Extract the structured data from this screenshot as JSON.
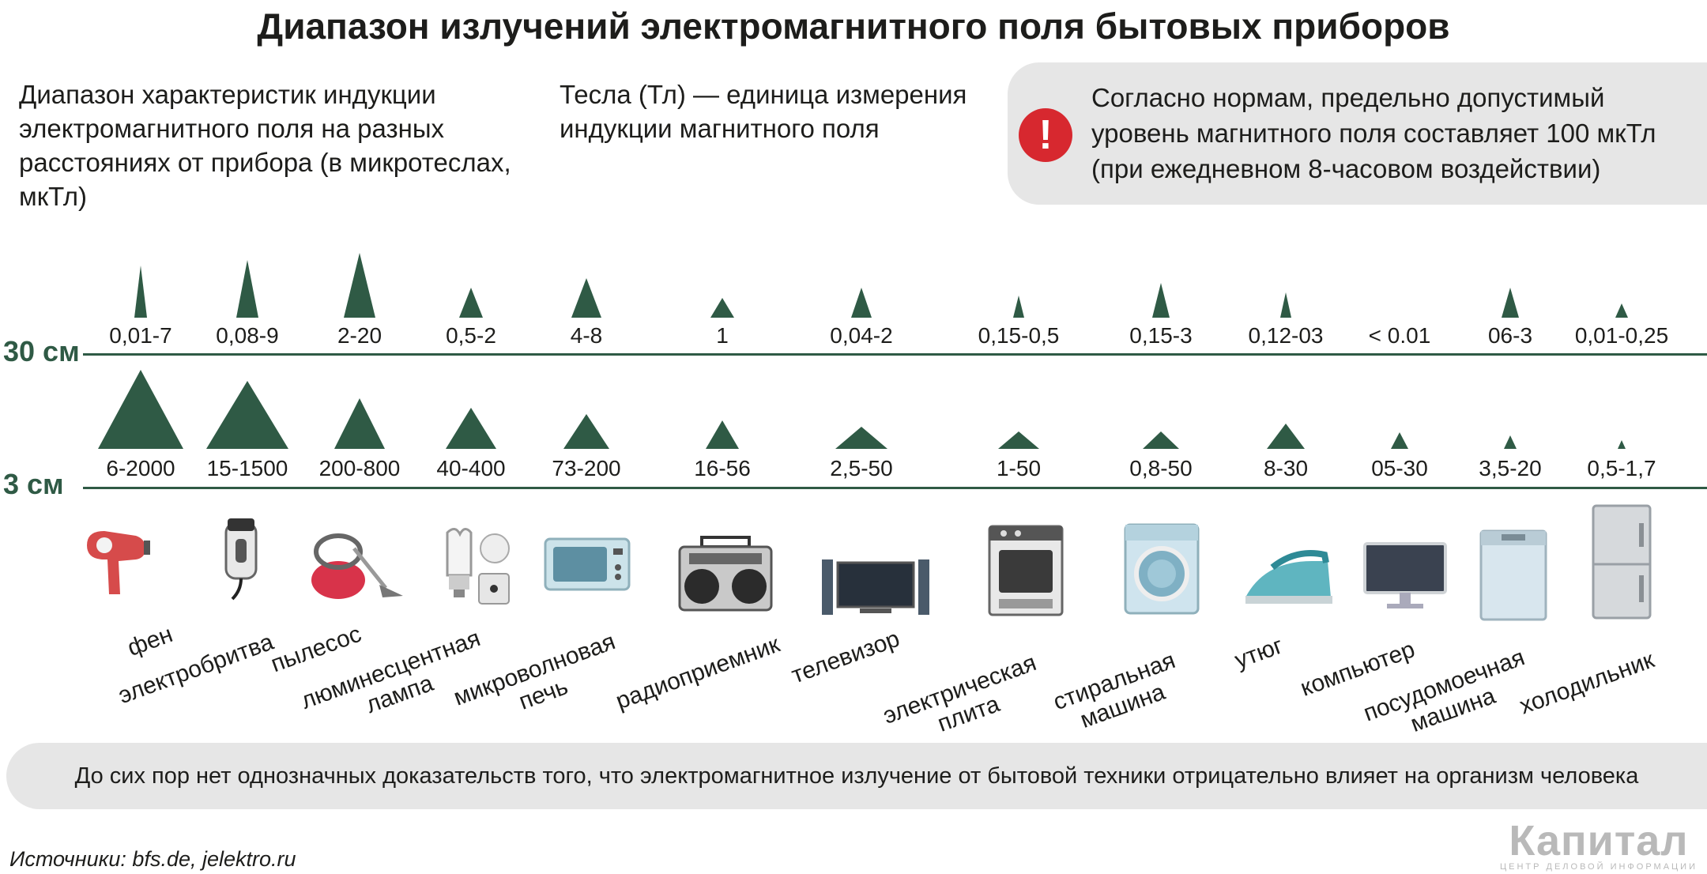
{
  "title": "Диапазон излучений электромагнитного поля бытовых приборов",
  "intro_left": "Диапазон характеристик индукции электромагнитного поля на разных расстояниях от прибора (в микротеслах, мкТл)",
  "intro_mid": "Тесла (Тл) — единица измерения индукции магнитного поля",
  "warning": {
    "icon": "exclamation-icon",
    "symbol": "!",
    "text": "Согласно нормам, предельно допустимый уровень магнитного поля составляет 100 мкТл (при ежедневном 8-часовом воздействии)",
    "color": "#d7282f"
  },
  "accent_color": "#2f5a45",
  "chart_data": {
    "type": "table",
    "rows": [
      {
        "label": "30 см",
        "values": [
          "0,01-7",
          "0,08-9",
          "2-20",
          "0,5-2",
          "4-8",
          "1",
          "0,04-2",
          "0,15-0,5",
          "0,15-3",
          "0,12-03",
          "< 0.01",
          "06-3",
          "0,01-0,25"
        ]
      },
      {
        "label": "3 см",
        "values": [
          "6-2000",
          "15-1500",
          "200-800",
          "40-400",
          "73-200",
          "16-56",
          "2,5-50",
          "1-50",
          "0,8-50",
          "8-30",
          "05-30",
          "3,5-20",
          "0,5-1,7"
        ]
      }
    ],
    "appliances": [
      {
        "name": "фен",
        "icon": "hair-dryer-icon"
      },
      {
        "name": "электробритва",
        "icon": "electric-shaver-icon"
      },
      {
        "name": "пылесос",
        "icon": "vacuum-cleaner-icon"
      },
      {
        "name": "люминесцентная лампа",
        "icon": "fluorescent-lamp-icon"
      },
      {
        "name": "микроволновая печь",
        "icon": "microwave-icon"
      },
      {
        "name": "радиоприемник",
        "icon": "radio-icon"
      },
      {
        "name": "телевизор",
        "icon": "tv-icon"
      },
      {
        "name": "электрическая плита",
        "icon": "electric-stove-icon"
      },
      {
        "name": "стиральная машина",
        "icon": "washing-machine-icon"
      },
      {
        "name": "утюг",
        "icon": "iron-icon"
      },
      {
        "name": "компьютер",
        "icon": "computer-icon"
      },
      {
        "name": "посудомоечная машина",
        "icon": "dishwasher-icon"
      },
      {
        "name": "холодильник",
        "icon": "fridge-icon"
      }
    ]
  },
  "note": "До сих пор нет однозначных доказательств того, что электромагнитное излучение от бытовой техники отрицательно влияет на организм человека",
  "sources": "Источники: bfs.de, jelektro.ru",
  "logo": {
    "word": "Капитал",
    "sub": "ЦЕНТР ДЕЛОВОЙ ИНФОРМАЦИИ"
  }
}
